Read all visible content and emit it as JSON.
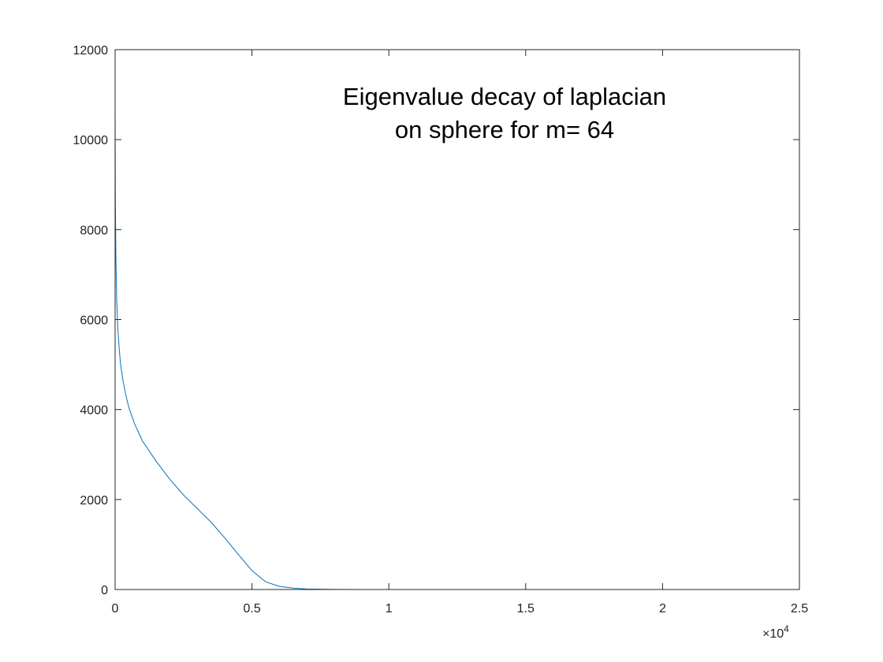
{
  "chart_data": {
    "type": "line",
    "title": "",
    "xlabel": "",
    "ylabel": "",
    "annotation": [
      "Eigenvalue decay of laplacian",
      "on sphere for m= 64"
    ],
    "xlim": [
      0,
      25000
    ],
    "ylim": [
      0,
      12000
    ],
    "xticks": [
      0,
      5000,
      10000,
      15000,
      20000,
      25000
    ],
    "xtick_labels": [
      "0",
      "0.5",
      "1",
      "1.5",
      "2",
      "2.5"
    ],
    "x_exponent_base": "×10",
    "x_exponent_power": "4",
    "yticks": [
      0,
      2000,
      4000,
      6000,
      8000,
      10000,
      12000
    ],
    "ytick_labels": [
      "0",
      "2000",
      "4000",
      "6000",
      "8000",
      "10000",
      "12000"
    ],
    "grid": false,
    "box": true,
    "series": [
      {
        "color": "#0072BD",
        "x": [
          1,
          10,
          30,
          60,
          100,
          150,
          200,
          300,
          400,
          500,
          700,
          1000,
          1500,
          2000,
          2500,
          3000,
          3500,
          4000,
          4500,
          5000,
          5500,
          6000,
          6500,
          7000,
          7500,
          8000,
          9000,
          10000,
          12000,
          15000,
          20000,
          23800
        ],
        "y": [
          10550,
          8600,
          7300,
          6400,
          5800,
          5350,
          5000,
          4600,
          4300,
          4050,
          3700,
          3300,
          2850,
          2450,
          2100,
          1800,
          1500,
          1150,
          780,
          420,
          170,
          70,
          30,
          12,
          6,
          3,
          1,
          0,
          0,
          0,
          0,
          0
        ]
      }
    ]
  }
}
